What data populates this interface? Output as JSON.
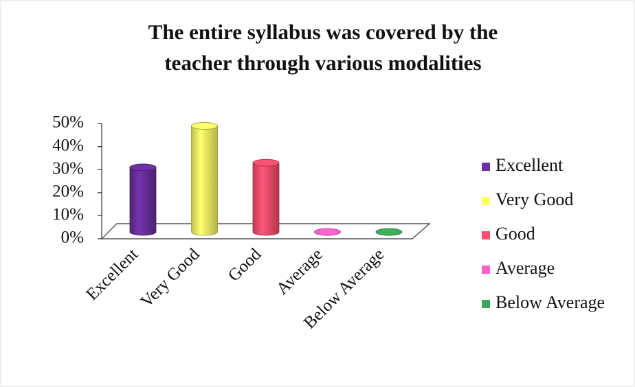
{
  "chart_data": {
    "type": "bar",
    "title": [
      "The entire syllabus was covered by the",
      "teacher through various modalities"
    ],
    "categories": [
      "Excellent",
      "Very Good",
      "Good",
      "Average",
      "Below Average"
    ],
    "values": [
      28,
      46,
      30,
      0,
      0
    ],
    "colors": [
      "#6b2f9e",
      "#ffff66",
      "#ff4f6e",
      "#ff5fc8",
      "#3aa858"
    ],
    "ylim": [
      0,
      50
    ],
    "yticks": [
      {
        "value": 0,
        "label": "0%"
      },
      {
        "value": 10,
        "label": "10%"
      },
      {
        "value": 20,
        "label": "20%"
      },
      {
        "value": 30,
        "label": "30%"
      },
      {
        "value": 40,
        "label": "40%"
      },
      {
        "value": 50,
        "label": "50%"
      }
    ],
    "legend": "right"
  }
}
